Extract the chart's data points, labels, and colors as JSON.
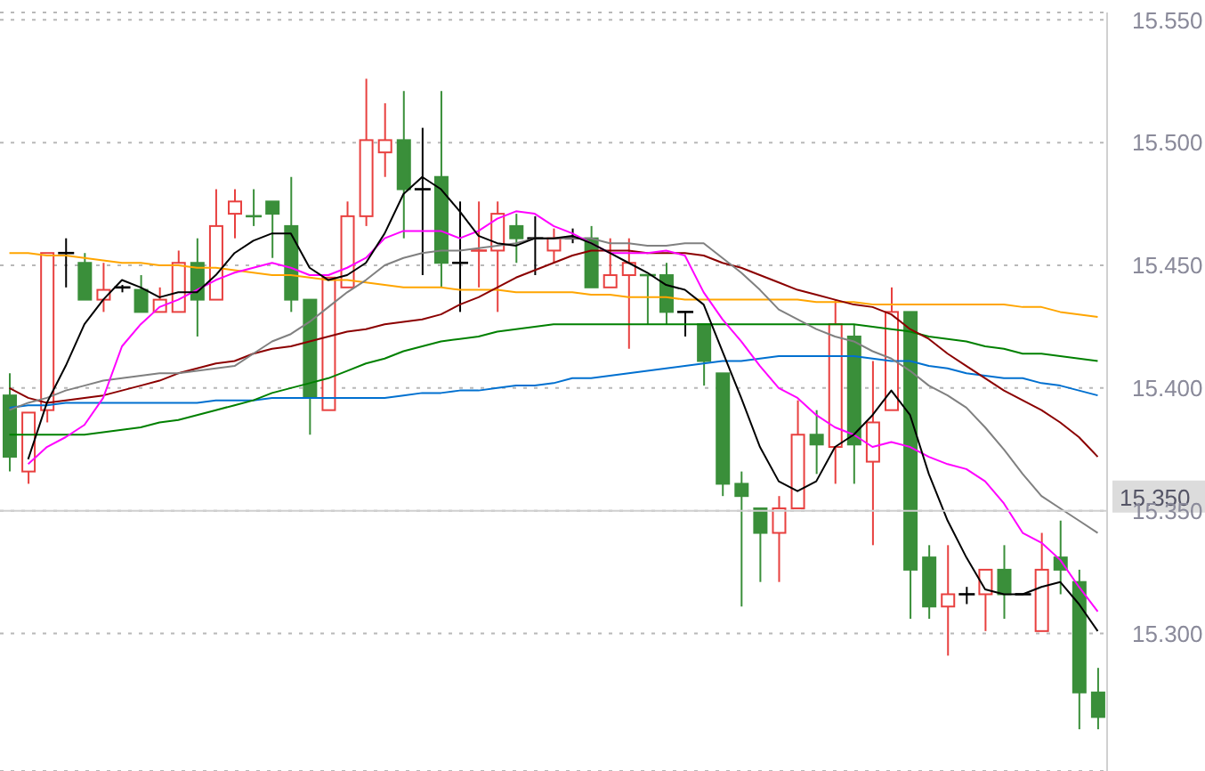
{
  "chart_data": {
    "type": "candlestick",
    "categories": [
      null,
      null,
      null,
      null,
      null,
      null,
      null,
      null,
      null,
      null,
      null,
      null,
      null,
      null,
      null,
      null,
      null,
      null,
      null,
      null,
      null,
      null,
      null,
      null,
      null,
      null,
      null,
      null,
      null,
      null,
      null,
      null,
      null,
      null,
      null,
      null,
      null,
      null,
      null,
      null,
      null,
      null,
      null,
      null,
      null,
      null,
      null,
      null,
      null,
      null,
      null,
      null,
      null,
      null,
      null,
      null,
      null,
      null,
      null
    ],
    "ohlc": [
      [
        15.397,
        15.406,
        15.366,
        15.372
      ],
      [
        15.366,
        15.39,
        15.361,
        15.39
      ],
      [
        15.391,
        15.455,
        15.386,
        15.455
      ],
      [
        15.455,
        15.461,
        15.441,
        15.455
      ],
      [
        15.451,
        15.455,
        15.436,
        15.436
      ],
      [
        15.436,
        15.451,
        15.431,
        15.44
      ],
      [
        15.441,
        15.442,
        15.439,
        15.441
      ],
      [
        15.44,
        15.446,
        15.431,
        15.431
      ],
      [
        15.431,
        15.441,
        15.431,
        15.436
      ],
      [
        15.431,
        15.456,
        15.431,
        15.451
      ],
      [
        15.451,
        15.461,
        15.421,
        15.436
      ],
      [
        15.436,
        15.481,
        15.436,
        15.466
      ],
      [
        15.471,
        15.481,
        15.461,
        15.476
      ],
      [
        15.47,
        15.481,
        15.466,
        15.47
      ],
      [
        15.476,
        15.476,
        15.453,
        15.471
      ],
      [
        15.466,
        15.486,
        15.431,
        15.436
      ],
      [
        15.436,
        15.436,
        15.381,
        15.396
      ],
      [
        15.391,
        15.445,
        15.391,
        15.445
      ],
      [
        15.441,
        15.476,
        15.441,
        15.47
      ],
      [
        15.47,
        15.526,
        15.466,
        15.501
      ],
      [
        15.496,
        15.516,
        15.486,
        15.501
      ],
      [
        15.501,
        15.521,
        15.461,
        15.481
      ],
      [
        15.481,
        15.506,
        15.446,
        15.481
      ],
      [
        15.486,
        15.521,
        15.441,
        15.451
      ],
      [
        15.451,
        15.476,
        15.431,
        15.451
      ],
      [
        15.456,
        15.476,
        15.441,
        15.456
      ],
      [
        15.456,
        15.476,
        15.431,
        15.471
      ],
      [
        15.466,
        15.471,
        15.451,
        15.461
      ],
      [
        15.461,
        15.47,
        15.446,
        15.461
      ],
      [
        15.456,
        15.465,
        15.451,
        15.461
      ],
      [
        15.461,
        15.465,
        15.459,
        15.461
      ],
      [
        15.461,
        15.466,
        15.441,
        15.441
      ],
      [
        15.441,
        15.461,
        15.441,
        15.446
      ],
      [
        15.446,
        15.461,
        15.416,
        15.451
      ],
      [
        15.446,
        15.446,
        15.426,
        15.446
      ],
      [
        15.446,
        15.451,
        15.426,
        15.431
      ],
      [
        15.431,
        15.431,
        15.421,
        15.431
      ],
      [
        15.426,
        15.426,
        15.401,
        15.411
      ],
      [
        15.406,
        15.406,
        15.356,
        15.361
      ],
      [
        15.361,
        15.366,
        15.311,
        15.356
      ],
      [
        15.351,
        15.351,
        15.321,
        15.341
      ],
      [
        15.341,
        15.356,
        15.321,
        15.351
      ],
      [
        15.351,
        15.395,
        15.351,
        15.381
      ],
      [
        15.381,
        15.391,
        15.365,
        15.377
      ],
      [
        15.376,
        15.436,
        15.361,
        15.426
      ],
      [
        15.421,
        15.426,
        15.361,
        15.377
      ],
      [
        15.37,
        15.411,
        15.336,
        15.386
      ],
      [
        15.391,
        15.441,
        15.391,
        15.431
      ],
      [
        15.431,
        15.431,
        15.306,
        15.326
      ],
      [
        15.331,
        15.336,
        15.306,
        15.311
      ],
      [
        15.311,
        15.336,
        15.291,
        15.316
      ],
      [
        15.316,
        15.319,
        15.312,
        15.316
      ],
      [
        15.316,
        15.326,
        15.301,
        15.326
      ],
      [
        15.326,
        15.336,
        15.306,
        15.316
      ],
      [
        15.316,
        15.316,
        15.316,
        15.316
      ],
      [
        15.301,
        15.341,
        15.301,
        15.326
      ],
      [
        15.331,
        15.346,
        15.316,
        15.326
      ],
      [
        15.321,
        15.326,
        15.261,
        15.276
      ],
      [
        15.276,
        15.286,
        15.261,
        15.266
      ]
    ],
    "colors": [
      "#3a8f3a",
      "#e8403f",
      "#e8403f",
      "#000000",
      "#3a8f3a",
      "#e8403f",
      "#000000",
      "#3a8f3a",
      "#e8403f",
      "#e8403f",
      "#3a8f3a",
      "#e8403f",
      "#e8403f",
      "#3a8f3a",
      "#3a8f3a",
      "#3a8f3a",
      "#3a8f3a",
      "#e8403f",
      "#e8403f",
      "#e8403f",
      "#e8403f",
      "#3a8f3a",
      "#000000",
      "#3a8f3a",
      "#000000",
      "#e8403f",
      "#e8403f",
      "#3a8f3a",
      "#000000",
      "#e8403f",
      "#000000",
      "#3a8f3a",
      "#e8403f",
      "#e8403f",
      "#3a8f3a",
      "#3a8f3a",
      "#000000",
      "#3a8f3a",
      "#3a8f3a",
      "#3a8f3a",
      "#3a8f3a",
      "#e8403f",
      "#e8403f",
      "#3a8f3a",
      "#e8403f",
      "#3a8f3a",
      "#e8403f",
      "#e8403f",
      "#3a8f3a",
      "#3a8f3a",
      "#e8403f",
      "#000000",
      "#e8403f",
      "#3a8f3a",
      "#000000",
      "#e8403f",
      "#3a8f3a",
      "#3a8f3a",
      "#3a8f3a"
    ],
    "series": [
      {
        "type": "line",
        "color": "#ffa500",
        "values": [
          15.455,
          15.455,
          15.454,
          15.454,
          15.453,
          15.452,
          15.451,
          15.451,
          15.45,
          15.45,
          15.449,
          15.449,
          15.448,
          15.447,
          15.446,
          15.446,
          15.445,
          15.444,
          15.444,
          15.443,
          15.442,
          15.441,
          15.441,
          15.441,
          15.44,
          15.44,
          15.44,
          15.439,
          15.439,
          15.439,
          15.439,
          15.438,
          15.438,
          15.437,
          15.437,
          15.437,
          15.436,
          15.436,
          15.436,
          15.436,
          15.436,
          15.436,
          15.436,
          15.435,
          15.435,
          15.435,
          15.434,
          15.434,
          15.434,
          15.434,
          15.434,
          15.434,
          15.434,
          15.434,
          15.433,
          15.433,
          15.431,
          15.43,
          15.429
        ]
      },
      {
        "type": "line",
        "color": "#0070d0",
        "values": [
          15.392,
          15.393,
          15.393,
          15.394,
          15.394,
          15.394,
          15.394,
          15.394,
          15.394,
          15.394,
          15.394,
          15.395,
          15.395,
          15.395,
          15.396,
          15.396,
          15.396,
          15.396,
          15.396,
          15.396,
          15.396,
          15.397,
          15.398,
          15.398,
          15.399,
          15.399,
          15.4,
          15.401,
          15.401,
          15.402,
          15.404,
          15.404,
          15.405,
          15.406,
          15.407,
          15.408,
          15.409,
          15.41,
          15.411,
          15.411,
          15.412,
          15.413,
          15.413,
          15.413,
          15.413,
          15.413,
          15.412,
          15.411,
          15.411,
          15.409,
          15.408,
          15.406,
          15.405,
          15.404,
          15.404,
          15.402,
          15.401,
          15.399,
          15.397
        ]
      },
      {
        "type": "line",
        "color": "#008000",
        "values": [
          15.381,
          15.381,
          15.381,
          15.381,
          15.381,
          15.382,
          15.383,
          15.384,
          15.386,
          15.387,
          15.389,
          15.391,
          15.393,
          15.395,
          15.398,
          15.4,
          15.402,
          15.404,
          15.407,
          15.41,
          15.412,
          15.415,
          15.417,
          15.419,
          15.42,
          15.421,
          15.423,
          15.424,
          15.425,
          15.426,
          15.426,
          15.426,
          15.426,
          15.426,
          15.426,
          15.426,
          15.426,
          15.426,
          15.426,
          15.426,
          15.426,
          15.426,
          15.426,
          15.426,
          15.426,
          15.426,
          15.425,
          15.424,
          15.423,
          15.421,
          15.42,
          15.419,
          15.417,
          15.416,
          15.414,
          15.414,
          15.413,
          15.412,
          15.411
        ]
      },
      {
        "type": "line",
        "color": "#8b0000",
        "values": [
          15.4,
          15.396,
          15.394,
          15.395,
          15.396,
          15.397,
          15.399,
          15.401,
          15.403,
          15.406,
          15.408,
          15.41,
          15.411,
          15.414,
          15.416,
          15.417,
          15.419,
          15.421,
          15.423,
          15.424,
          15.426,
          15.427,
          15.428,
          15.43,
          15.434,
          15.437,
          15.441,
          15.445,
          15.448,
          15.451,
          15.454,
          15.456,
          15.456,
          15.456,
          15.455,
          15.455,
          15.455,
          15.454,
          15.451,
          15.449,
          15.446,
          15.443,
          15.44,
          15.438,
          15.436,
          15.434,
          15.433,
          15.43,
          15.424,
          15.42,
          15.414,
          15.409,
          15.404,
          15.399,
          15.395,
          15.391,
          15.386,
          15.38,
          15.372
        ]
      },
      {
        "type": "line",
        "color": "#808080",
        "values": [
          15.391,
          15.394,
          15.396,
          15.399,
          15.401,
          15.403,
          15.404,
          15.405,
          15.406,
          15.406,
          15.407,
          15.408,
          15.409,
          15.414,
          15.419,
          15.422,
          15.427,
          15.433,
          15.439,
          15.444,
          15.45,
          15.453,
          15.455,
          15.456,
          15.456,
          15.457,
          15.458,
          15.459,
          15.461,
          15.461,
          15.461,
          15.461,
          15.459,
          15.459,
          15.458,
          15.458,
          15.459,
          15.459,
          15.453,
          15.447,
          15.44,
          15.432,
          15.428,
          15.424,
          15.421,
          15.419,
          15.415,
          15.412,
          15.407,
          15.401,
          15.397,
          15.392,
          15.384,
          15.375,
          15.365,
          15.356,
          15.351,
          15.346,
          15.341
        ]
      },
      {
        "type": "line",
        "color": "#ff00ff",
        "values": [
          null,
          15.369,
          15.376,
          15.38,
          15.385,
          15.396,
          15.417,
          15.426,
          15.433,
          15.436,
          15.44,
          15.444,
          15.447,
          15.449,
          15.451,
          15.449,
          15.446,
          15.446,
          15.449,
          15.453,
          15.461,
          15.464,
          15.464,
          15.464,
          15.461,
          15.464,
          15.469,
          15.472,
          15.471,
          15.466,
          15.463,
          15.459,
          15.455,
          15.455,
          15.455,
          15.456,
          15.454,
          15.439,
          15.428,
          15.419,
          15.409,
          15.4,
          15.396,
          15.389,
          15.384,
          15.381,
          15.376,
          15.378,
          15.376,
          15.372,
          15.369,
          15.367,
          15.362,
          15.353,
          15.341,
          15.337,
          15.33,
          15.319,
          15.309
        ]
      },
      {
        "type": "line",
        "color": "#000000",
        "values": [
          null,
          15.371,
          15.394,
          15.409,
          15.426,
          15.436,
          15.444,
          15.441,
          15.437,
          15.439,
          15.439,
          15.446,
          15.455,
          15.46,
          15.463,
          15.463,
          15.449,
          15.444,
          15.446,
          15.451,
          15.463,
          15.479,
          15.486,
          15.481,
          15.472,
          15.462,
          15.459,
          15.458,
          15.461,
          15.461,
          15.462,
          15.459,
          15.455,
          15.451,
          15.447,
          15.442,
          15.44,
          15.434,
          15.415,
          15.396,
          15.376,
          15.362,
          15.358,
          15.362,
          15.376,
          15.381,
          15.389,
          15.399,
          15.389,
          15.365,
          15.346,
          15.331,
          15.318,
          15.316,
          15.316,
          15.319,
          15.321,
          15.312,
          15.301
        ]
      }
    ],
    "ylim": [
      15.244,
      15.553
    ],
    "yticks": [
      {
        "value": 15.3,
        "label": "15.300"
      },
      {
        "value": 15.35,
        "label": "15.350"
      },
      {
        "value": 15.4,
        "label": "15.400"
      },
      {
        "value": 15.45,
        "label": "15.450"
      },
      {
        "value": 15.5,
        "label": "15.500"
      },
      {
        "value": 15.55,
        "label": "15.550"
      }
    ],
    "ref_lines": [
      {
        "axis": "y",
        "value": 15.35,
        "label": "15.350"
      }
    ],
    "grid": "y",
    "legend": false,
    "marker": "none"
  }
}
